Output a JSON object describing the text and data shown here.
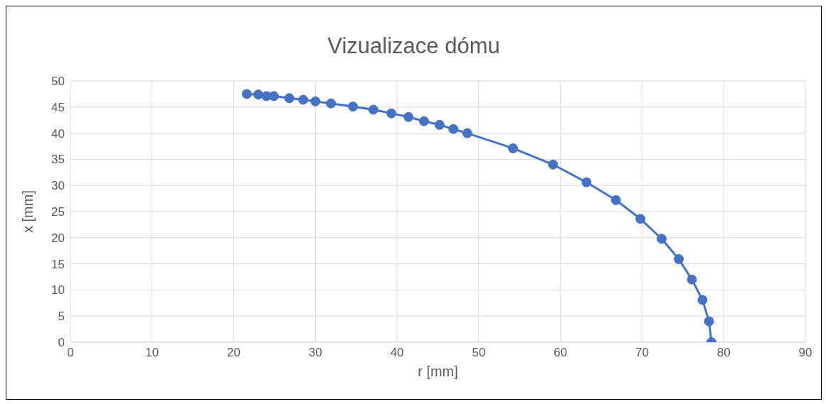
{
  "chart_data": {
    "type": "line",
    "title": "Vizualizace dómu",
    "xlabel": "r [mm]",
    "ylabel": "x [mm]",
    "x": [
      21.6,
      23.0,
      24.0,
      24.9,
      26.8,
      28.5,
      30.0,
      31.9,
      34.6,
      37.1,
      39.3,
      41.4,
      43.3,
      45.2,
      46.9,
      48.6,
      54.2,
      59.1,
      63.2,
      66.8,
      69.8,
      72.4,
      74.5,
      76.1,
      77.4,
      78.2,
      78.5
    ],
    "values": [
      47.5,
      47.4,
      47.1,
      47.1,
      46.7,
      46.4,
      46.1,
      45.7,
      45.1,
      44.5,
      43.8,
      43.1,
      42.3,
      41.6,
      40.8,
      40.0,
      37.1,
      34.0,
      30.6,
      27.2,
      23.6,
      19.8,
      15.9,
      12.0,
      8.1,
      4.0,
      0
    ],
    "color": "#4472c4",
    "marker": "circle",
    "line_style": "solid",
    "grid": true,
    "xlim": [
      0,
      90
    ],
    "xticks": [
      0,
      10,
      20,
      30,
      40,
      50,
      60,
      70,
      80,
      90
    ],
    "ylim": [
      0,
      50
    ],
    "yticks": [
      0,
      5,
      10,
      15,
      20,
      25,
      30,
      35,
      40,
      45,
      50
    ]
  }
}
